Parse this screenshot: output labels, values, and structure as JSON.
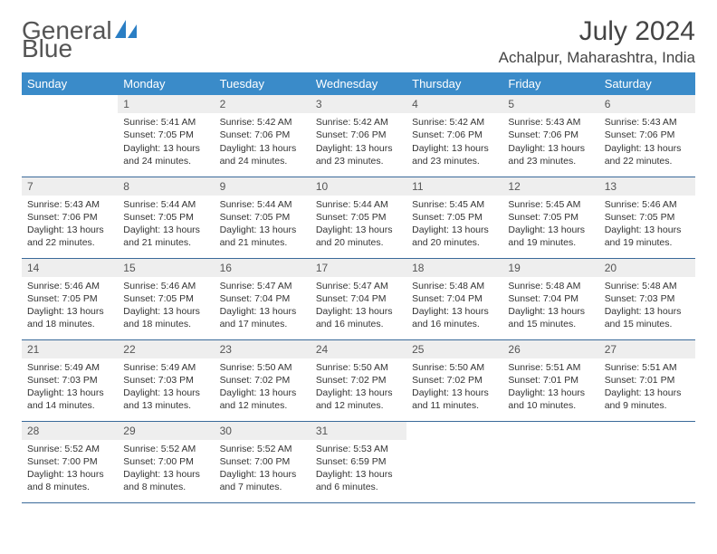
{
  "brand": {
    "name_part1": "General",
    "name_part2": "Blue"
  },
  "title": {
    "month_year": "July 2024",
    "location": "Achalpur, Maharashtra, India"
  },
  "colors": {
    "header_bg": "#3a8bc9",
    "row_border": "#3a6a9a",
    "daynum_bg": "#eeeeee",
    "text": "#333333",
    "logo_blue": "#2a7ec4"
  },
  "weekdays": [
    "Sunday",
    "Monday",
    "Tuesday",
    "Wednesday",
    "Thursday",
    "Friday",
    "Saturday"
  ],
  "weeks": [
    [
      {
        "num": "",
        "sunrise": "",
        "sunset": "",
        "daylight": ""
      },
      {
        "num": "1",
        "sunrise": "Sunrise: 5:41 AM",
        "sunset": "Sunset: 7:05 PM",
        "daylight": "Daylight: 13 hours and 24 minutes."
      },
      {
        "num": "2",
        "sunrise": "Sunrise: 5:42 AM",
        "sunset": "Sunset: 7:06 PM",
        "daylight": "Daylight: 13 hours and 24 minutes."
      },
      {
        "num": "3",
        "sunrise": "Sunrise: 5:42 AM",
        "sunset": "Sunset: 7:06 PM",
        "daylight": "Daylight: 13 hours and 23 minutes."
      },
      {
        "num": "4",
        "sunrise": "Sunrise: 5:42 AM",
        "sunset": "Sunset: 7:06 PM",
        "daylight": "Daylight: 13 hours and 23 minutes."
      },
      {
        "num": "5",
        "sunrise": "Sunrise: 5:43 AM",
        "sunset": "Sunset: 7:06 PM",
        "daylight": "Daylight: 13 hours and 23 minutes."
      },
      {
        "num": "6",
        "sunrise": "Sunrise: 5:43 AM",
        "sunset": "Sunset: 7:06 PM",
        "daylight": "Daylight: 13 hours and 22 minutes."
      }
    ],
    [
      {
        "num": "7",
        "sunrise": "Sunrise: 5:43 AM",
        "sunset": "Sunset: 7:06 PM",
        "daylight": "Daylight: 13 hours and 22 minutes."
      },
      {
        "num": "8",
        "sunrise": "Sunrise: 5:44 AM",
        "sunset": "Sunset: 7:05 PM",
        "daylight": "Daylight: 13 hours and 21 minutes."
      },
      {
        "num": "9",
        "sunrise": "Sunrise: 5:44 AM",
        "sunset": "Sunset: 7:05 PM",
        "daylight": "Daylight: 13 hours and 21 minutes."
      },
      {
        "num": "10",
        "sunrise": "Sunrise: 5:44 AM",
        "sunset": "Sunset: 7:05 PM",
        "daylight": "Daylight: 13 hours and 20 minutes."
      },
      {
        "num": "11",
        "sunrise": "Sunrise: 5:45 AM",
        "sunset": "Sunset: 7:05 PM",
        "daylight": "Daylight: 13 hours and 20 minutes."
      },
      {
        "num": "12",
        "sunrise": "Sunrise: 5:45 AM",
        "sunset": "Sunset: 7:05 PM",
        "daylight": "Daylight: 13 hours and 19 minutes."
      },
      {
        "num": "13",
        "sunrise": "Sunrise: 5:46 AM",
        "sunset": "Sunset: 7:05 PM",
        "daylight": "Daylight: 13 hours and 19 minutes."
      }
    ],
    [
      {
        "num": "14",
        "sunrise": "Sunrise: 5:46 AM",
        "sunset": "Sunset: 7:05 PM",
        "daylight": "Daylight: 13 hours and 18 minutes."
      },
      {
        "num": "15",
        "sunrise": "Sunrise: 5:46 AM",
        "sunset": "Sunset: 7:05 PM",
        "daylight": "Daylight: 13 hours and 18 minutes."
      },
      {
        "num": "16",
        "sunrise": "Sunrise: 5:47 AM",
        "sunset": "Sunset: 7:04 PM",
        "daylight": "Daylight: 13 hours and 17 minutes."
      },
      {
        "num": "17",
        "sunrise": "Sunrise: 5:47 AM",
        "sunset": "Sunset: 7:04 PM",
        "daylight": "Daylight: 13 hours and 16 minutes."
      },
      {
        "num": "18",
        "sunrise": "Sunrise: 5:48 AM",
        "sunset": "Sunset: 7:04 PM",
        "daylight": "Daylight: 13 hours and 16 minutes."
      },
      {
        "num": "19",
        "sunrise": "Sunrise: 5:48 AM",
        "sunset": "Sunset: 7:04 PM",
        "daylight": "Daylight: 13 hours and 15 minutes."
      },
      {
        "num": "20",
        "sunrise": "Sunrise: 5:48 AM",
        "sunset": "Sunset: 7:03 PM",
        "daylight": "Daylight: 13 hours and 15 minutes."
      }
    ],
    [
      {
        "num": "21",
        "sunrise": "Sunrise: 5:49 AM",
        "sunset": "Sunset: 7:03 PM",
        "daylight": "Daylight: 13 hours and 14 minutes."
      },
      {
        "num": "22",
        "sunrise": "Sunrise: 5:49 AM",
        "sunset": "Sunset: 7:03 PM",
        "daylight": "Daylight: 13 hours and 13 minutes."
      },
      {
        "num": "23",
        "sunrise": "Sunrise: 5:50 AM",
        "sunset": "Sunset: 7:02 PM",
        "daylight": "Daylight: 13 hours and 12 minutes."
      },
      {
        "num": "24",
        "sunrise": "Sunrise: 5:50 AM",
        "sunset": "Sunset: 7:02 PM",
        "daylight": "Daylight: 13 hours and 12 minutes."
      },
      {
        "num": "25",
        "sunrise": "Sunrise: 5:50 AM",
        "sunset": "Sunset: 7:02 PM",
        "daylight": "Daylight: 13 hours and 11 minutes."
      },
      {
        "num": "26",
        "sunrise": "Sunrise: 5:51 AM",
        "sunset": "Sunset: 7:01 PM",
        "daylight": "Daylight: 13 hours and 10 minutes."
      },
      {
        "num": "27",
        "sunrise": "Sunrise: 5:51 AM",
        "sunset": "Sunset: 7:01 PM",
        "daylight": "Daylight: 13 hours and 9 minutes."
      }
    ],
    [
      {
        "num": "28",
        "sunrise": "Sunrise: 5:52 AM",
        "sunset": "Sunset: 7:00 PM",
        "daylight": "Daylight: 13 hours and 8 minutes."
      },
      {
        "num": "29",
        "sunrise": "Sunrise: 5:52 AM",
        "sunset": "Sunset: 7:00 PM",
        "daylight": "Daylight: 13 hours and 8 minutes."
      },
      {
        "num": "30",
        "sunrise": "Sunrise: 5:52 AM",
        "sunset": "Sunset: 7:00 PM",
        "daylight": "Daylight: 13 hours and 7 minutes."
      },
      {
        "num": "31",
        "sunrise": "Sunrise: 5:53 AM",
        "sunset": "Sunset: 6:59 PM",
        "daylight": "Daylight: 13 hours and 6 minutes."
      },
      {
        "num": "",
        "sunrise": "",
        "sunset": "",
        "daylight": ""
      },
      {
        "num": "",
        "sunrise": "",
        "sunset": "",
        "daylight": ""
      },
      {
        "num": "",
        "sunrise": "",
        "sunset": "",
        "daylight": ""
      }
    ]
  ]
}
